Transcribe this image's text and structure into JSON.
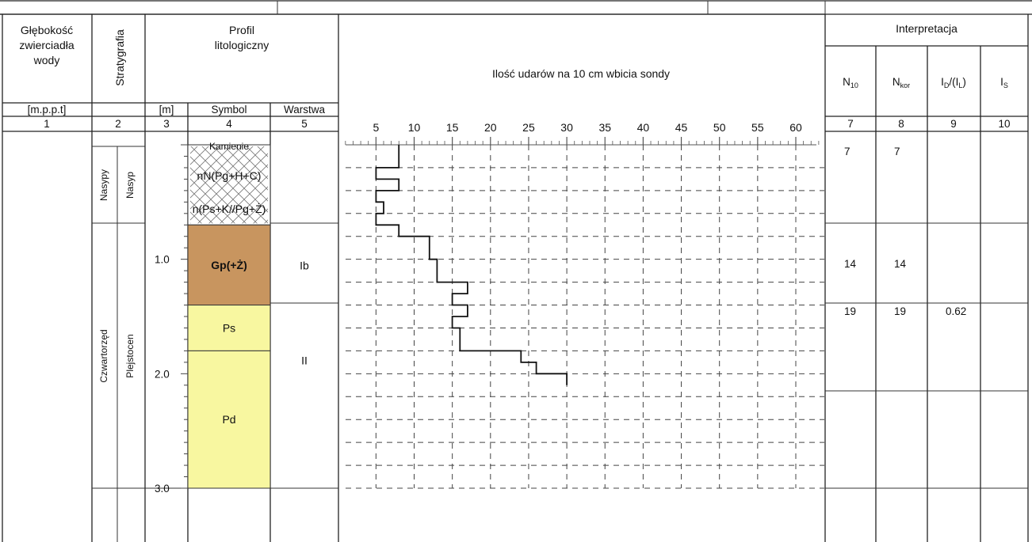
{
  "header": {
    "col1_title": "Głębokość zwierciadła wody",
    "col1_lines": [
      "Głębokość",
      "zwierciadła",
      "wody"
    ],
    "col2_title": "Stratygrafia",
    "profile_title_lines": [
      "Profil",
      "litologiczny"
    ],
    "chart_title": "Ilość udarów na 10 cm wbicia sondy",
    "interp_title": "Interpretacja",
    "unit_depth": "[m.p.p.t]",
    "unit_m": "[m]",
    "symbol_label": "Symbol",
    "layer_label": "Warstwa",
    "col_numbers": [
      "1",
      "2",
      "3",
      "4",
      "5",
      "7",
      "8",
      "9",
      "10"
    ],
    "interp_cols": [
      {
        "main": "N",
        "sub": "10",
        "suffix": ""
      },
      {
        "main": "N",
        "sub": "kor",
        "suffix": ""
      },
      {
        "main": "I",
        "sub": "D",
        "suffix": "/(I",
        "sub2": "L",
        "suffix2": ")"
      },
      {
        "main": "I",
        "sub": "S",
        "suffix": ""
      }
    ]
  },
  "stratigraphy": {
    "upper": {
      "system": "Nasypy",
      "series": "Nasyp"
    },
    "lower": {
      "system": "Czwartorzęd",
      "series": "Plejstocen"
    }
  },
  "depth_ticks": [
    "1.0",
    "2.0",
    "3.0"
  ],
  "lithology": [
    {
      "symbol_lines": [
        "Kamienie",
        "nN(Pg+H+C)",
        "n(Ps+K//Pg+Ż)"
      ],
      "fill": "#ffffff",
      "pattern": "crosshatch",
      "top": 0.0,
      "bottom": 0.7
    },
    {
      "symbol_lines": [
        "Gp(+Ż)"
      ],
      "fill": "#c8955f",
      "top": 0.7,
      "bottom": 1.4
    },
    {
      "symbol_lines": [
        "Ps"
      ],
      "fill": "#f8f7a0",
      "top": 1.4,
      "bottom": 1.8
    },
    {
      "symbol_lines": [
        "Pd"
      ],
      "fill": "#f8f7a0",
      "top": 1.8,
      "bottom": 3.0
    }
  ],
  "layers": [
    {
      "label": "Ib",
      "top": 0.7,
      "bottom": 1.4
    },
    {
      "label": "II",
      "top": 1.4,
      "bottom": 3.0
    }
  ],
  "chart_data": {
    "type": "line",
    "title": "Ilość udarów na 10 cm wbicia sondy",
    "x_ticks": [
      5,
      10,
      15,
      20,
      25,
      30,
      35,
      40,
      45,
      50,
      55,
      60
    ],
    "xlim": [
      2,
      66
    ],
    "ylim": [
      0,
      3.0
    ],
    "step_profile": [
      {
        "depth_from": 0.0,
        "depth_to": 0.1,
        "blows": 8
      },
      {
        "depth_from": 0.1,
        "depth_to": 0.2,
        "blows": 8
      },
      {
        "depth_from": 0.2,
        "depth_to": 0.3,
        "blows": 5
      },
      {
        "depth_from": 0.3,
        "depth_to": 0.4,
        "blows": 8
      },
      {
        "depth_from": 0.4,
        "depth_to": 0.5,
        "blows": 5
      },
      {
        "depth_from": 0.5,
        "depth_to": 0.6,
        "blows": 6
      },
      {
        "depth_from": 0.6,
        "depth_to": 0.7,
        "blows": 5
      },
      {
        "depth_from": 0.7,
        "depth_to": 0.8,
        "blows": 8
      },
      {
        "depth_from": 0.8,
        "depth_to": 0.9,
        "blows": 12
      },
      {
        "depth_from": 0.9,
        "depth_to": 1.0,
        "blows": 12
      },
      {
        "depth_from": 1.0,
        "depth_to": 1.1,
        "blows": 13
      },
      {
        "depth_from": 1.1,
        "depth_to": 1.2,
        "blows": 13
      },
      {
        "depth_from": 1.2,
        "depth_to": 1.3,
        "blows": 17
      },
      {
        "depth_from": 1.3,
        "depth_to": 1.4,
        "blows": 15
      },
      {
        "depth_from": 1.4,
        "depth_to": 1.5,
        "blows": 17
      },
      {
        "depth_from": 1.5,
        "depth_to": 1.6,
        "blows": 15
      },
      {
        "depth_from": 1.6,
        "depth_to": 1.7,
        "blows": 16
      },
      {
        "depth_from": 1.7,
        "depth_to": 1.8,
        "blows": 16
      },
      {
        "depth_from": 1.8,
        "depth_to": 1.9,
        "blows": 24
      },
      {
        "depth_from": 1.9,
        "depth_to": 2.0,
        "blows": 26
      },
      {
        "depth_from": 2.0,
        "depth_to": 2.1,
        "blows": 30
      }
    ]
  },
  "interpretation": [
    {
      "n10": "7",
      "nkor": "7",
      "id": "",
      "is": ""
    },
    {
      "n10": "14",
      "nkor": "14",
      "id": "",
      "is": ""
    },
    {
      "n10": "19",
      "nkor": "19",
      "id": "0.62",
      "is": ""
    }
  ]
}
